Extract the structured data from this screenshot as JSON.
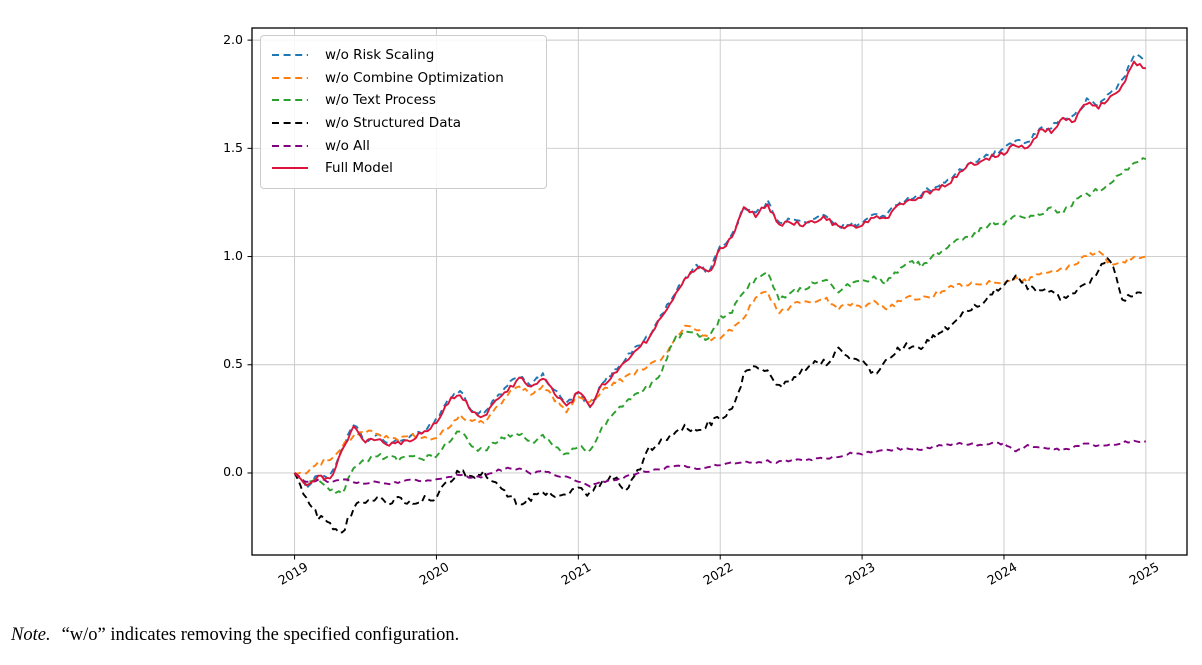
{
  "figure": {
    "note": {
      "prefix": "Note.",
      "body": "“w/o” indicates removing the specified configuration."
    }
  },
  "chart_data": {
    "type": "line",
    "title": "",
    "xlabel": "",
    "ylabel": "",
    "grid": true,
    "legend_position": "upper-left",
    "x_ticks": [
      2019,
      2020,
      2021,
      2022,
      2023,
      2024,
      2025
    ],
    "y_ticks": [
      0.0,
      0.5,
      1.0,
      1.5,
      2.0
    ],
    "xlim": [
      2018.7,
      2025.29
    ],
    "ylim": [
      -0.379,
      2.056
    ],
    "x_start": 2019.0,
    "x_step_years": 0.0833333,
    "x_unit": "year (monthly samples, 2019-01 to 2025-01)",
    "grid_color": "#c8c8c8",
    "series": [
      {
        "name": "w/o Risk Scaling",
        "color": "#1f77b4",
        "style": "dashed",
        "jitter": 0.012,
        "values": [
          0.0,
          -0.06,
          -0.01,
          -0.02,
          0.11,
          0.22,
          0.15,
          0.17,
          0.14,
          0.15,
          0.17,
          0.2,
          0.25,
          0.34,
          0.38,
          0.29,
          0.27,
          0.34,
          0.4,
          0.45,
          0.41,
          0.45,
          0.38,
          0.32,
          0.37,
          0.3,
          0.41,
          0.47,
          0.53,
          0.59,
          0.63,
          0.73,
          0.81,
          0.9,
          0.96,
          0.93,
          1.04,
          1.1,
          1.23,
          1.2,
          1.25,
          1.16,
          1.17,
          1.16,
          1.17,
          1.19,
          1.14,
          1.15,
          1.15,
          1.2,
          1.18,
          1.25,
          1.27,
          1.29,
          1.32,
          1.34,
          1.38,
          1.43,
          1.45,
          1.47,
          1.49,
          1.54,
          1.52,
          1.59,
          1.6,
          1.64,
          1.65,
          1.72,
          1.7,
          1.76,
          1.81,
          1.93,
          1.92
        ]
      },
      {
        "name": "w/o Combine Optimization",
        "color": "#ff7f0e",
        "style": "dashed",
        "jitter": 0.011,
        "values": [
          0.0,
          0.0,
          0.04,
          0.07,
          0.12,
          0.17,
          0.19,
          0.18,
          0.16,
          0.16,
          0.17,
          0.16,
          0.16,
          0.21,
          0.26,
          0.24,
          0.23,
          0.3,
          0.36,
          0.4,
          0.36,
          0.4,
          0.34,
          0.29,
          0.35,
          0.33,
          0.38,
          0.41,
          0.44,
          0.47,
          0.5,
          0.52,
          0.6,
          0.68,
          0.66,
          0.62,
          0.63,
          0.66,
          0.71,
          0.82,
          0.83,
          0.74,
          0.77,
          0.8,
          0.78,
          0.8,
          0.76,
          0.78,
          0.76,
          0.79,
          0.75,
          0.79,
          0.81,
          0.8,
          0.82,
          0.84,
          0.87,
          0.87,
          0.87,
          0.88,
          0.88,
          0.9,
          0.89,
          0.92,
          0.93,
          0.94,
          0.96,
          1.01,
          1.02,
          0.97,
          0.98,
          0.99,
          1.0
        ]
      },
      {
        "name": "w/o Text Process",
        "color": "#2ca02c",
        "style": "dashed",
        "jitter": 0.012,
        "values": [
          0.0,
          -0.05,
          -0.04,
          -0.08,
          -0.1,
          0.02,
          0.06,
          0.08,
          0.07,
          0.06,
          0.08,
          0.07,
          0.08,
          0.14,
          0.2,
          0.12,
          0.1,
          0.14,
          0.17,
          0.18,
          0.14,
          0.17,
          0.12,
          0.08,
          0.13,
          0.1,
          0.2,
          0.28,
          0.32,
          0.37,
          0.4,
          0.46,
          0.61,
          0.65,
          0.64,
          0.61,
          0.72,
          0.75,
          0.84,
          0.89,
          0.92,
          0.8,
          0.84,
          0.85,
          0.88,
          0.9,
          0.84,
          0.87,
          0.88,
          0.9,
          0.88,
          0.93,
          0.98,
          0.96,
          1.0,
          1.04,
          1.07,
          1.09,
          1.12,
          1.16,
          1.15,
          1.19,
          1.17,
          1.2,
          1.22,
          1.2,
          1.26,
          1.28,
          1.31,
          1.34,
          1.38,
          1.44,
          1.45
        ]
      },
      {
        "name": "w/o Structured Data",
        "color": "#000000",
        "style": "dashed",
        "jitter": 0.015,
        "values": [
          0.0,
          -0.12,
          -0.2,
          -0.24,
          -0.28,
          -0.16,
          -0.13,
          -0.11,
          -0.14,
          -0.12,
          -0.15,
          -0.12,
          -0.11,
          -0.04,
          0.01,
          -0.02,
          0.0,
          -0.05,
          -0.1,
          -0.14,
          -0.12,
          -0.08,
          -0.12,
          -0.1,
          -0.07,
          -0.1,
          -0.04,
          -0.02,
          -0.07,
          0.0,
          0.11,
          0.15,
          0.18,
          0.21,
          0.19,
          0.23,
          0.25,
          0.29,
          0.45,
          0.5,
          0.47,
          0.4,
          0.43,
          0.48,
          0.52,
          0.51,
          0.57,
          0.54,
          0.51,
          0.46,
          0.51,
          0.57,
          0.59,
          0.57,
          0.63,
          0.66,
          0.71,
          0.75,
          0.78,
          0.83,
          0.86,
          0.91,
          0.86,
          0.84,
          0.83,
          0.81,
          0.83,
          0.87,
          0.94,
          0.99,
          0.79,
          0.83,
          0.83
        ]
      },
      {
        "name": "w/o All",
        "color": "#800080",
        "style": "dashed",
        "jitter": 0.005,
        "values": [
          0.0,
          -0.045,
          -0.03,
          -0.04,
          -0.03,
          -0.04,
          -0.05,
          -0.04,
          -0.05,
          -0.04,
          -0.03,
          -0.04,
          -0.03,
          -0.02,
          -0.01,
          -0.02,
          -0.015,
          0.01,
          0.02,
          0.02,
          0.0,
          0.01,
          -0.01,
          -0.02,
          -0.04,
          -0.06,
          -0.04,
          -0.03,
          -0.02,
          0.0,
          0.01,
          0.02,
          0.03,
          0.03,
          0.02,
          0.03,
          0.04,
          0.045,
          0.05,
          0.05,
          0.055,
          0.05,
          0.06,
          0.06,
          0.065,
          0.07,
          0.075,
          0.09,
          0.09,
          0.1,
          0.105,
          0.11,
          0.115,
          0.11,
          0.12,
          0.13,
          0.135,
          0.135,
          0.13,
          0.135,
          0.135,
          0.1,
          0.125,
          0.12,
          0.115,
          0.105,
          0.12,
          0.135,
          0.125,
          0.13,
          0.14,
          0.15,
          0.145
        ]
      },
      {
        "name": "Full Model",
        "color": "#dc143c",
        "style": "solid",
        "jitter": 0.012,
        "values": [
          0.0,
          -0.06,
          -0.01,
          -0.03,
          0.1,
          0.21,
          0.15,
          0.16,
          0.13,
          0.14,
          0.16,
          0.19,
          0.24,
          0.33,
          0.37,
          0.28,
          0.26,
          0.33,
          0.38,
          0.44,
          0.4,
          0.44,
          0.37,
          0.31,
          0.37,
          0.31,
          0.4,
          0.46,
          0.52,
          0.58,
          0.62,
          0.72,
          0.8,
          0.89,
          0.95,
          0.92,
          1.03,
          1.09,
          1.22,
          1.19,
          1.24,
          1.15,
          1.16,
          1.15,
          1.16,
          1.18,
          1.13,
          1.14,
          1.14,
          1.19,
          1.17,
          1.24,
          1.26,
          1.28,
          1.31,
          1.33,
          1.37,
          1.42,
          1.44,
          1.46,
          1.48,
          1.52,
          1.5,
          1.58,
          1.58,
          1.63,
          1.63,
          1.71,
          1.69,
          1.74,
          1.79,
          1.89,
          1.87
        ]
      }
    ]
  }
}
